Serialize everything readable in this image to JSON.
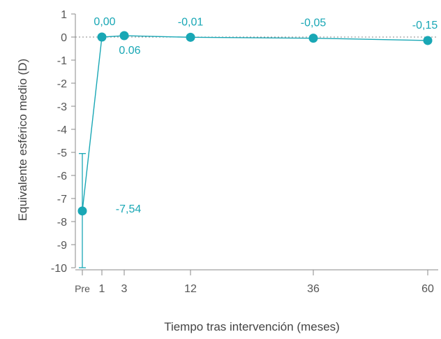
{
  "colors": {
    "series": "#19a7b5",
    "axis": "#8a8a8a",
    "text": "#555555",
    "reference_line": "#8a8a8a"
  },
  "chart_data": {
    "type": "line",
    "title": "",
    "xlabel": "Tiempo tras intervención (meses)",
    "ylabel": "Equivalente esférico medio (D)",
    "x_tick_labels": [
      "Pre",
      "1",
      "3",
      "12",
      "36",
      "60"
    ],
    "y_ticks": [
      1,
      0,
      -1,
      -2,
      -3,
      -4,
      -5,
      -6,
      -7,
      -8,
      -9,
      -10
    ],
    "y_tick_labels": [
      "1",
      "0",
      "-1",
      "-2",
      "-3",
      "-4",
      "-5",
      "-6",
      "-7",
      "-8",
      "-9",
      "-10"
    ],
    "ylim": [
      -10,
      1
    ],
    "grid": false,
    "reference_line_y": 0,
    "series": [
      {
        "points": [
          {
            "x": "Pre",
            "y": -7.54,
            "label": "-7,54",
            "error_low": -10,
            "error_high": -5.05
          },
          {
            "x": "1",
            "y": 0.0,
            "label": "0,00"
          },
          {
            "x": "3",
            "y": 0.06,
            "label": "0.06"
          },
          {
            "x": "12",
            "y": -0.01,
            "label": "-0,01"
          },
          {
            "x": "36",
            "y": -0.05,
            "label": "-0,05"
          },
          {
            "x": "60",
            "y": -0.15,
            "label": "-0,15"
          }
        ]
      }
    ]
  }
}
